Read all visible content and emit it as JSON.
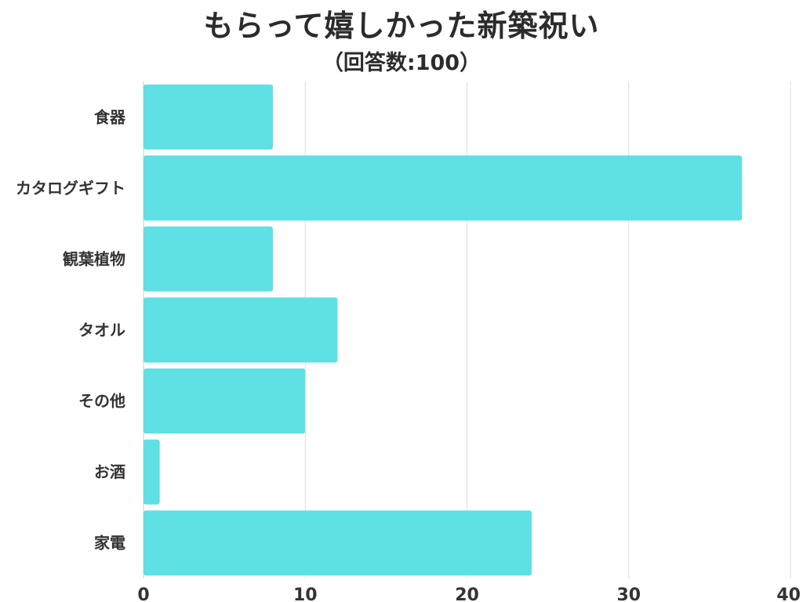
{
  "chart_data": {
    "type": "bar",
    "orientation": "horizontal",
    "title": "もらって嬉しかった新築祝い",
    "subtitle": "（回答数:100）",
    "categories": [
      "食器",
      "カタログギフト",
      "観葉植物",
      "タオル",
      "その他",
      "お酒",
      "家電"
    ],
    "values": [
      8,
      37,
      8,
      12,
      10,
      1,
      24
    ],
    "xlim": [
      0,
      40
    ],
    "xticks": [
      0,
      10,
      20,
      30,
      40
    ],
    "grid": true,
    "bar_color": "#5ee0e5",
    "grid_color": "#dddddd"
  }
}
